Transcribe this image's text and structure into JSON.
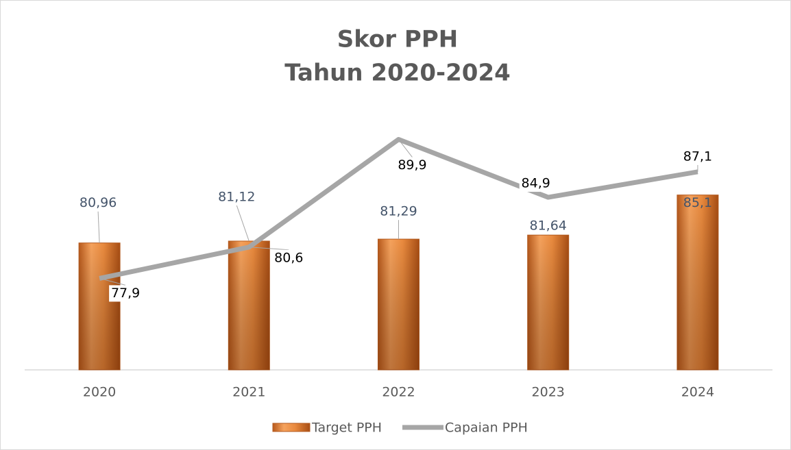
{
  "chart_data": {
    "type": "bar_line",
    "title": "Skor PPH",
    "subtitle": "Tahun 2020-2024",
    "categories": [
      "2020",
      "2021",
      "2022",
      "2023",
      "2024"
    ],
    "ylim": [
      70,
      92
    ],
    "series": [
      {
        "name": "Target PPH",
        "type": "bar",
        "color": "#e0792f",
        "label_color": "#44546a",
        "values": [
          80.96,
          81.12,
          81.29,
          81.64,
          85.1
        ],
        "value_labels": [
          "80,96",
          "81,12",
          "81,29",
          "81,64",
          "85,1"
        ]
      },
      {
        "name": "Capaian PPH",
        "type": "line",
        "color": "#a6a6a6",
        "label_color": "#000000",
        "values": [
          77.9,
          80.6,
          89.9,
          84.9,
          87.1
        ],
        "value_labels": [
          "77,9",
          "80,6",
          "89,9",
          "84,9",
          "87,1"
        ]
      }
    ]
  }
}
